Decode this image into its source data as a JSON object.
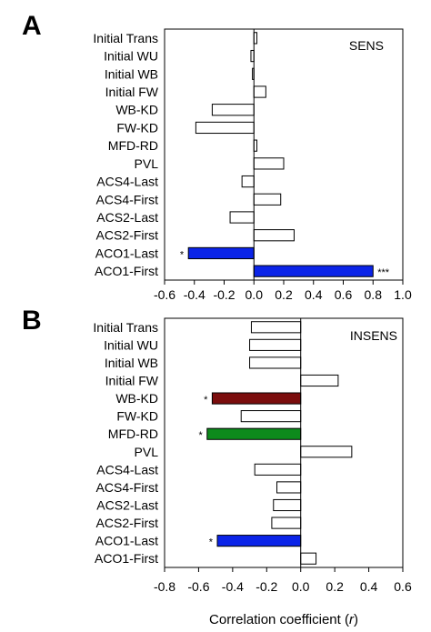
{
  "figure": {
    "xlabel": "Correlation coefficient (r)",
    "xlabel_prefix": "Correlation coefficient (",
    "xlabel_var": "r",
    "xlabel_suffix": ")"
  },
  "chart_data": [
    {
      "type": "bar",
      "orientation": "horizontal",
      "panel": "A",
      "inset_label": "SENS",
      "categories": [
        "Initial Trans",
        "Initial WU",
        "Initial WB",
        "Initial FW",
        "WB-KD",
        "FW-KD",
        "MFD-RD",
        "PVL",
        "ACS4-Last",
        "ACS4-First",
        "ACS2-Last",
        "ACS2-First",
        "ACO1-Last",
        "ACO1-First"
      ],
      "values": [
        0.02,
        -0.02,
        -0.01,
        0.08,
        -0.28,
        -0.39,
        0.02,
        0.2,
        -0.08,
        0.18,
        -0.16,
        0.27,
        -0.44,
        0.8
      ],
      "colors": [
        "#ffffff",
        "#ffffff",
        "#ffffff",
        "#ffffff",
        "#ffffff",
        "#ffffff",
        "#ffffff",
        "#ffffff",
        "#ffffff",
        "#ffffff",
        "#ffffff",
        "#ffffff",
        "#0b24e8",
        "#0b24e8"
      ],
      "significance": [
        "",
        "",
        "",
        "",
        "",
        "",
        "",
        "",
        "",
        "",
        "",
        "",
        "*",
        "***"
      ],
      "xlim": [
        -0.6,
        1.0
      ],
      "xticks": [
        "-0.6",
        "-0.4",
        "-0.2",
        "0.0",
        "0.2",
        "0.4",
        "0.6",
        "0.8",
        "1.0"
      ],
      "grid": false
    },
    {
      "type": "bar",
      "orientation": "horizontal",
      "panel": "B",
      "inset_label": "INSENS",
      "categories": [
        "Initial Trans",
        "Initial WU",
        "Initial WB",
        "Initial FW",
        "WB-KD",
        "FW-KD",
        "MFD-RD",
        "PVL",
        "ACS4-Last",
        "ACS4-First",
        "ACS2-Last",
        "ACS2-First",
        "ACO1-Last",
        "ACO1-First"
      ],
      "values": [
        -0.29,
        -0.3,
        -0.3,
        0.22,
        -0.52,
        -0.35,
        -0.55,
        0.3,
        -0.27,
        -0.14,
        -0.16,
        -0.17,
        -0.49,
        0.09
      ],
      "colors": [
        "#ffffff",
        "#ffffff",
        "#ffffff",
        "#ffffff",
        "#7b0d0d",
        "#ffffff",
        "#0d8a1c",
        "#ffffff",
        "#ffffff",
        "#ffffff",
        "#ffffff",
        "#ffffff",
        "#0b24e8",
        "#ffffff"
      ],
      "significance": [
        "",
        "",
        "",
        "",
        "*",
        "",
        "*",
        "",
        "",
        "",
        "",
        "",
        "*",
        ""
      ],
      "xlim": [
        -0.8,
        0.6
      ],
      "xticks": [
        "-0.8",
        "-0.6",
        "-0.4",
        "-0.2",
        "0.0",
        "0.2",
        "0.4",
        "0.6"
      ],
      "grid": false
    }
  ]
}
